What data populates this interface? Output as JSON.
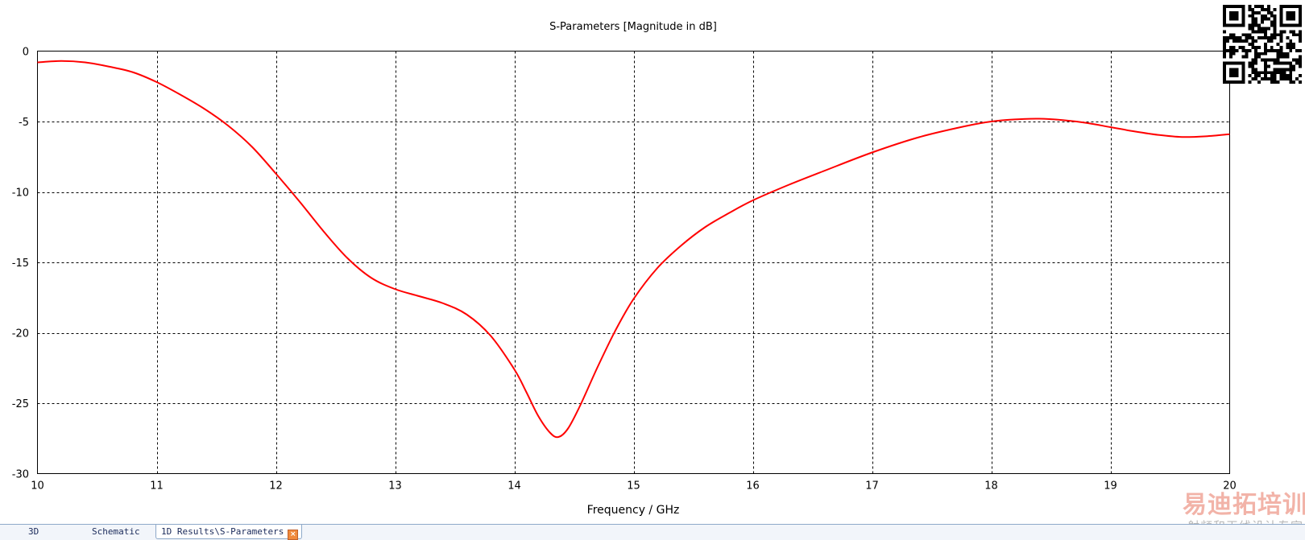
{
  "chart_data": {
    "type": "line",
    "title": "S-Parameters [Magnitude in dB]",
    "xlabel": "Frequency / GHz",
    "ylabel": "",
    "xlim": [
      10,
      20
    ],
    "ylim": [
      -30,
      0
    ],
    "x_ticks": [
      10,
      11,
      12,
      13,
      14,
      15,
      16,
      17,
      18,
      19,
      20
    ],
    "y_ticks": [
      0,
      -5,
      -10,
      -15,
      -20,
      -25,
      -30
    ],
    "grid": true,
    "grid_style": "dashed",
    "colors": {
      "series": "#ff0000",
      "grid": "#000000",
      "axis": "#000000"
    },
    "series": [
      {
        "x": [
          10.0,
          10.2,
          10.4,
          10.6,
          10.8,
          11.0,
          11.2,
          11.4,
          11.6,
          11.8,
          12.0,
          12.2,
          12.4,
          12.6,
          12.8,
          13.0,
          13.2,
          13.4,
          13.6,
          13.8,
          14.0,
          14.1,
          14.2,
          14.3,
          14.37,
          14.45,
          14.55,
          14.7,
          14.85,
          15.0,
          15.2,
          15.4,
          15.6,
          15.8,
          16.0,
          16.3,
          16.6,
          17.0,
          17.4,
          17.8,
          18.0,
          18.2,
          18.4,
          18.6,
          18.8,
          19.0,
          19.2,
          19.4,
          19.6,
          19.8,
          20.0
        ],
        "y": [
          -0.8,
          -0.7,
          -0.8,
          -1.1,
          -1.5,
          -2.2,
          -3.1,
          -4.1,
          -5.3,
          -6.8,
          -8.7,
          -10.7,
          -12.8,
          -14.7,
          -16.1,
          -16.9,
          -17.4,
          -17.9,
          -18.7,
          -20.2,
          -22.6,
          -24.2,
          -25.9,
          -27.1,
          -27.4,
          -26.8,
          -25.2,
          -22.4,
          -19.8,
          -17.6,
          -15.4,
          -13.8,
          -12.5,
          -11.5,
          -10.6,
          -9.5,
          -8.5,
          -7.2,
          -6.1,
          -5.3,
          -5.0,
          -4.85,
          -4.8,
          -4.9,
          -5.1,
          -5.4,
          -5.7,
          -5.95,
          -6.1,
          -6.05,
          -5.9
        ]
      }
    ]
  },
  "qr": {
    "icon": "qr-code-icon"
  },
  "watermark": {
    "main": "易迪拓培训",
    "sub": "射频和天线设计专家"
  },
  "tabs": [
    {
      "label": "3D",
      "active": false
    },
    {
      "label": "Schematic",
      "active": false
    },
    {
      "label": "1D Results\\S-Parameters",
      "active": true
    }
  ]
}
